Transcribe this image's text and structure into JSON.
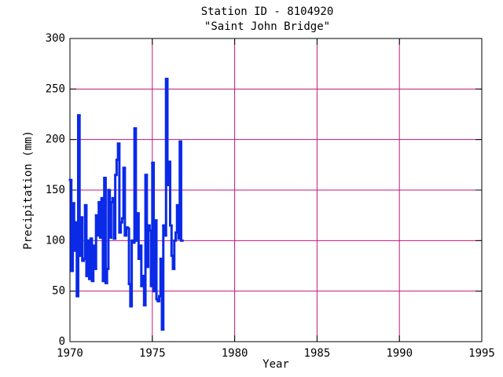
{
  "chart_data": {
    "type": "step",
    "title": "Station ID - 8104920",
    "subtitle": "\"Saint John Bridge\"",
    "x_label": "Year",
    "y_label": "Precipitation (mm)",
    "x": [
      1970,
      1970.083,
      1970.167,
      1970.25,
      1970.333,
      1970.417,
      1970.5,
      1970.583,
      1970.667,
      1970.75,
      1970.833,
      1970.917,
      1971,
      1971.083,
      1971.167,
      1971.25,
      1971.333,
      1971.417,
      1971.5,
      1971.583,
      1971.667,
      1971.75,
      1971.833,
      1971.917,
      1972,
      1972.083,
      1972.167,
      1972.25,
      1972.333,
      1972.417,
      1972.5,
      1972.583,
      1972.667,
      1972.75,
      1972.833,
      1972.917,
      1973,
      1973.083,
      1973.167,
      1973.25,
      1973.333,
      1973.417,
      1973.5,
      1973.583,
      1973.667,
      1973.75,
      1973.833,
      1973.917,
      1974,
      1974.083,
      1974.167,
      1974.25,
      1974.333,
      1974.417,
      1974.5,
      1974.583,
      1974.667,
      1974.75,
      1974.833,
      1974.917,
      1975,
      1975.083,
      1975.167,
      1975.25,
      1975.333,
      1975.417,
      1975.5,
      1975.583,
      1975.667,
      1975.75,
      1975.833,
      1975.917,
      1976,
      1976.083,
      1976.167,
      1976.25,
      1976.333,
      1976.417,
      1976.5,
      1976.583,
      1976.667,
      1976.75
    ],
    "series": [
      {
        "color": "#0a2ae8",
        "values": [
          160,
          70,
          137,
          90,
          118,
          45,
          224,
          85,
          123,
          80,
          82,
          135,
          65,
          100,
          62,
          102,
          60,
          95,
          72,
          125,
          105,
          138,
          103,
          142,
          60,
          162,
          58,
          72,
          150,
          103,
          138,
          142,
          102,
          165,
          180,
          196,
          108,
          118,
          122,
          172,
          105,
          113,
          112,
          57,
          35,
          100,
          98,
          211,
          100,
          127,
          82,
          95,
          55,
          65,
          36,
          165,
          74,
          115,
          110,
          55,
          177,
          50,
          120,
          42,
          40,
          45,
          82,
          12,
          115,
          105,
          260,
          155,
          178,
          115,
          85,
          72,
          100,
          108,
          135,
          102,
          198,
          100
        ]
      }
    ],
    "xlim": [
      1970,
      1995
    ],
    "xticks": [
      1970,
      1975,
      1980,
      1985,
      1990,
      1995
    ],
    "ylim": [
      0,
      300
    ],
    "yticks": [
      0,
      50,
      100,
      150,
      200,
      250,
      300
    ],
    "grid": true,
    "grid_color": "#c0187a"
  }
}
